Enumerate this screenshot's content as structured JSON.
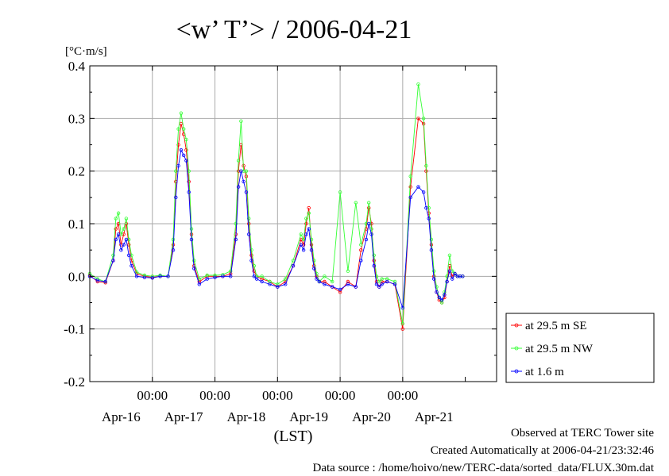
{
  "chart_data": {
    "type": "line",
    "title": "<w’ T’> / 2006-04-21",
    "ylabel": "[°C·m/s]",
    "xlabel": "(LST)",
    "ylim": [
      -0.2,
      0.4
    ],
    "yticks": [
      -0.2,
      -0.1,
      0.0,
      0.1,
      0.2,
      0.3,
      0.4
    ],
    "ytick_labels": [
      "-0.2",
      "-0.1",
      "0.0",
      "0.1",
      "0.2",
      "0.3",
      "0.4"
    ],
    "xlim_days": [
      "2006-04-15T00:00",
      "2006-04-21T12:00"
    ],
    "xtick_labels": [
      "00:00",
      "00:00",
      "00:00",
      "00:00",
      "00:00"
    ],
    "date_labels": [
      "Apr-16",
      "Apr-17",
      "Apr-18",
      "Apr-19",
      "Apr-20",
      "Apr-21"
    ],
    "grid": true,
    "legend_position": "right",
    "series": [
      {
        "name": "at 29.5 m SE",
        "color": "#ff0000",
        "x": [
          "2006-04-15T00:00",
          "2006-04-15T03:00",
          "2006-04-15T06:00",
          "2006-04-15T09:00",
          "2006-04-15T10:00",
          "2006-04-15T11:00",
          "2006-04-15T12:00",
          "2006-04-15T13:00",
          "2006-04-15T14:00",
          "2006-04-15T15:00",
          "2006-04-15T16:00",
          "2006-04-15T18:00",
          "2006-04-15T21:00",
          "2006-04-16T00:00",
          "2006-04-16T03:00",
          "2006-04-16T06:00",
          "2006-04-16T08:00",
          "2006-04-16T09:00",
          "2006-04-16T10:00",
          "2006-04-16T11:00",
          "2006-04-16T12:00",
          "2006-04-16T13:00",
          "2006-04-16T14:00",
          "2006-04-16T15:00",
          "2006-04-16T16:00",
          "2006-04-16T18:00",
          "2006-04-16T21:00",
          "2006-04-17T00:00",
          "2006-04-17T03:00",
          "2006-04-17T06:00",
          "2006-04-17T08:00",
          "2006-04-17T09:00",
          "2006-04-17T10:00",
          "2006-04-17T11:00",
          "2006-04-17T12:00",
          "2006-04-17T13:00",
          "2006-04-17T14:00",
          "2006-04-17T15:00",
          "2006-04-17T16:00",
          "2006-04-17T18:00",
          "2006-04-17T21:00",
          "2006-04-18T00:00",
          "2006-04-18T03:00",
          "2006-04-18T06:00",
          "2006-04-18T09:00",
          "2006-04-18T10:00",
          "2006-04-18T11:00",
          "2006-04-18T12:00",
          "2006-04-18T13:00",
          "2006-04-18T14:00",
          "2006-04-18T15:00",
          "2006-04-18T16:00",
          "2006-04-18T18:00",
          "2006-04-18T21:00",
          "2006-04-19T00:00",
          "2006-04-19T03:00",
          "2006-04-19T06:00",
          "2006-04-19T08:00",
          "2006-04-19T10:00",
          "2006-04-19T11:00",
          "2006-04-19T12:00",
          "2006-04-19T13:00",
          "2006-04-19T14:00",
          "2006-04-19T15:00",
          "2006-04-19T16:00",
          "2006-04-19T18:00",
          "2006-04-19T21:00",
          "2006-04-20T00:00",
          "2006-04-20T03:00",
          "2006-04-20T06:00",
          "2006-04-20T08:00",
          "2006-04-20T09:00",
          "2006-04-20T10:00",
          "2006-04-20T11:00",
          "2006-04-20T12:00",
          "2006-04-20T13:00",
          "2006-04-20T14:00",
          "2006-04-20T15:00",
          "2006-04-20T16:00",
          "2006-04-20T17:00",
          "2006-04-20T18:00",
          "2006-04-20T19:00",
          "2006-04-20T20:00",
          "2006-04-20T21:00",
          "2006-04-20T22:00",
          "2006-04-20T23:00"
        ],
        "values": [
          0.002,
          -0.01,
          -0.012,
          0.03,
          0.09,
          0.1,
          0.06,
          0.08,
          0.1,
          0.06,
          0.03,
          0.005,
          0.0,
          -0.002,
          0.0,
          0.0,
          0.06,
          0.18,
          0.25,
          0.29,
          0.27,
          0.24,
          0.18,
          0.08,
          0.02,
          -0.01,
          0.0,
          0.0,
          0.0,
          0.005,
          0.08,
          0.2,
          0.25,
          0.21,
          0.19,
          0.1,
          0.04,
          0.01,
          0.0,
          -0.005,
          -0.01,
          -0.02,
          -0.01,
          0.02,
          0.07,
          0.06,
          0.1,
          0.13,
          0.06,
          0.02,
          0.0,
          -0.01,
          -0.01,
          -0.02,
          -0.03,
          -0.01,
          -0.02,
          0.05,
          0.09,
          0.13,
          0.1,
          0.03,
          -0.01,
          -0.02,
          -0.01,
          -0.01,
          -0.015,
          -0.1,
          0.17,
          0.3,
          0.29,
          0.2,
          0.12,
          0.06,
          0.0,
          -0.03,
          -0.045,
          -0.05,
          -0.04,
          -0.01,
          0.02,
          0.0,
          0.005,
          0.0,
          0.0,
          0.0
        ]
      },
      {
        "name": "at 29.5 m NW",
        "color": "#33ff33",
        "x": [
          "2006-04-15T00:00",
          "2006-04-15T03:00",
          "2006-04-15T06:00",
          "2006-04-15T09:00",
          "2006-04-15T10:00",
          "2006-04-15T11:00",
          "2006-04-15T12:00",
          "2006-04-15T13:00",
          "2006-04-15T14:00",
          "2006-04-15T15:00",
          "2006-04-15T16:00",
          "2006-04-15T18:00",
          "2006-04-15T21:00",
          "2006-04-16T00:00",
          "2006-04-16T03:00",
          "2006-04-16T06:00",
          "2006-04-16T08:00",
          "2006-04-16T09:00",
          "2006-04-16T10:00",
          "2006-04-16T11:00",
          "2006-04-16T12:00",
          "2006-04-16T13:00",
          "2006-04-16T14:00",
          "2006-04-16T15:00",
          "2006-04-16T16:00",
          "2006-04-16T18:00",
          "2006-04-16T21:00",
          "2006-04-17T00:00",
          "2006-04-17T03:00",
          "2006-04-17T06:00",
          "2006-04-17T08:00",
          "2006-04-17T09:00",
          "2006-04-17T10:00",
          "2006-04-17T11:00",
          "2006-04-17T12:00",
          "2006-04-17T13:00",
          "2006-04-17T14:00",
          "2006-04-17T15:00",
          "2006-04-17T16:00",
          "2006-04-17T18:00",
          "2006-04-17T21:00",
          "2006-04-18T00:00",
          "2006-04-18T03:00",
          "2006-04-18T06:00",
          "2006-04-18T09:00",
          "2006-04-18T10:00",
          "2006-04-18T11:00",
          "2006-04-18T12:00",
          "2006-04-18T13:00",
          "2006-04-18T14:00",
          "2006-04-18T15:00",
          "2006-04-18T16:00",
          "2006-04-18T18:00",
          "2006-04-18T21:00",
          "2006-04-19T00:00",
          "2006-04-19T03:00",
          "2006-04-19T06:00",
          "2006-04-19T08:00",
          "2006-04-19T10:00",
          "2006-04-19T11:00",
          "2006-04-19T12:00",
          "2006-04-19T13:00",
          "2006-04-19T14:00",
          "2006-04-19T15:00",
          "2006-04-19T16:00",
          "2006-04-19T18:00",
          "2006-04-19T21:00",
          "2006-04-20T00:00",
          "2006-04-20T03:00",
          "2006-04-20T06:00",
          "2006-04-20T08:00",
          "2006-04-20T09:00",
          "2006-04-20T10:00",
          "2006-04-20T11:00",
          "2006-04-20T12:00",
          "2006-04-20T13:00",
          "2006-04-20T14:00",
          "2006-04-20T15:00",
          "2006-04-20T16:00",
          "2006-04-20T17:00",
          "2006-04-20T18:00",
          "2006-04-20T19:00",
          "2006-04-20T20:00",
          "2006-04-20T21:00",
          "2006-04-20T22:00",
          "2006-04-20T23:00"
        ],
        "values": [
          0.005,
          -0.005,
          -0.01,
          0.04,
          0.11,
          0.12,
          0.08,
          0.09,
          0.11,
          0.07,
          0.04,
          0.008,
          0.002,
          0.0,
          0.002,
          0.0,
          0.07,
          0.2,
          0.28,
          0.31,
          0.28,
          0.26,
          0.2,
          0.09,
          0.03,
          -0.005,
          0.002,
          0.002,
          0.003,
          0.01,
          0.1,
          0.22,
          0.295,
          0.2,
          0.2,
          0.11,
          0.05,
          0.02,
          0.0,
          0.0,
          -0.01,
          -0.015,
          -0.005,
          0.03,
          0.08,
          0.07,
          0.11,
          0.12,
          0.07,
          0.03,
          0.005,
          -0.01,
          0.0,
          -0.01,
          0.16,
          0.01,
          0.14,
          0.06,
          0.1,
          0.14,
          0.09,
          0.04,
          0.0,
          -0.01,
          -0.005,
          -0.005,
          -0.01,
          -0.09,
          0.19,
          0.365,
          0.3,
          0.21,
          0.13,
          0.07,
          0.01,
          -0.02,
          -0.04,
          -0.05,
          -0.03,
          0.0,
          0.04,
          0.01,
          0.005,
          0.0,
          0.0,
          0.0
        ]
      },
      {
        "name": "at 1.6 m",
        "color": "#0000ff",
        "x": [
          "2006-04-15T00:00",
          "2006-04-15T03:00",
          "2006-04-15T06:00",
          "2006-04-15T09:00",
          "2006-04-15T10:00",
          "2006-04-15T11:00",
          "2006-04-15T12:00",
          "2006-04-15T13:00",
          "2006-04-15T14:00",
          "2006-04-15T15:00",
          "2006-04-15T16:00",
          "2006-04-15T18:00",
          "2006-04-15T21:00",
          "2006-04-16T00:00",
          "2006-04-16T03:00",
          "2006-04-16T06:00",
          "2006-04-16T08:00",
          "2006-04-16T09:00",
          "2006-04-16T10:00",
          "2006-04-16T11:00",
          "2006-04-16T12:00",
          "2006-04-16T13:00",
          "2006-04-16T14:00",
          "2006-04-16T15:00",
          "2006-04-16T16:00",
          "2006-04-16T18:00",
          "2006-04-16T21:00",
          "2006-04-17T00:00",
          "2006-04-17T03:00",
          "2006-04-17T06:00",
          "2006-04-17T08:00",
          "2006-04-17T09:00",
          "2006-04-17T10:00",
          "2006-04-17T11:00",
          "2006-04-17T12:00",
          "2006-04-17T13:00",
          "2006-04-17T14:00",
          "2006-04-17T15:00",
          "2006-04-17T16:00",
          "2006-04-17T18:00",
          "2006-04-17T21:00",
          "2006-04-18T00:00",
          "2006-04-18T03:00",
          "2006-04-18T06:00",
          "2006-04-18T09:00",
          "2006-04-18T10:00",
          "2006-04-18T11:00",
          "2006-04-18T12:00",
          "2006-04-18T13:00",
          "2006-04-18T14:00",
          "2006-04-18T15:00",
          "2006-04-18T16:00",
          "2006-04-18T18:00",
          "2006-04-18T21:00",
          "2006-04-19T00:00",
          "2006-04-19T03:00",
          "2006-04-19T06:00",
          "2006-04-19T08:00",
          "2006-04-19T10:00",
          "2006-04-19T11:00",
          "2006-04-19T12:00",
          "2006-04-19T13:00",
          "2006-04-19T14:00",
          "2006-04-19T15:00",
          "2006-04-19T16:00",
          "2006-04-19T18:00",
          "2006-04-19T21:00",
          "2006-04-20T00:00",
          "2006-04-20T03:00",
          "2006-04-20T06:00",
          "2006-04-20T08:00",
          "2006-04-20T09:00",
          "2006-04-20T10:00",
          "2006-04-20T11:00",
          "2006-04-20T12:00",
          "2006-04-20T13:00",
          "2006-04-20T14:00",
          "2006-04-20T15:00",
          "2006-04-20T16:00",
          "2006-04-20T17:00",
          "2006-04-20T18:00",
          "2006-04-20T19:00",
          "2006-04-20T20:00",
          "2006-04-20T21:00",
          "2006-04-20T22:00",
          "2006-04-20T23:00"
        ],
        "values": [
          0.0,
          -0.008,
          -0.01,
          0.03,
          0.07,
          0.08,
          0.05,
          0.06,
          0.07,
          0.04,
          0.02,
          0.0,
          -0.002,
          -0.003,
          0.0,
          0.0,
          0.05,
          0.15,
          0.21,
          0.24,
          0.23,
          0.22,
          0.16,
          0.07,
          0.015,
          -0.015,
          -0.005,
          -0.002,
          0.0,
          0.0,
          0.07,
          0.17,
          0.2,
          0.18,
          0.16,
          0.08,
          0.03,
          0.0,
          -0.005,
          -0.01,
          -0.015,
          -0.02,
          -0.015,
          0.02,
          0.06,
          0.05,
          0.08,
          0.09,
          0.05,
          0.015,
          -0.005,
          -0.01,
          -0.015,
          -0.02,
          -0.025,
          -0.015,
          -0.02,
          0.03,
          0.07,
          0.1,
          0.08,
          0.02,
          -0.015,
          -0.02,
          -0.015,
          -0.01,
          -0.015,
          -0.06,
          0.15,
          0.17,
          0.16,
          0.13,
          0.11,
          0.05,
          -0.005,
          -0.03,
          -0.04,
          -0.045,
          -0.035,
          -0.01,
          0.01,
          -0.005,
          0.005,
          0.0,
          0.0,
          0.0
        ]
      }
    ]
  },
  "footer": {
    "line1": "Observed at TERC Tower site",
    "line2": "Created Automatically at 2006-04-21/23:32:46",
    "line3": "Data source : /home/hoivo/new/TERC-data/sorted_data/FLUX.30m.dat"
  }
}
